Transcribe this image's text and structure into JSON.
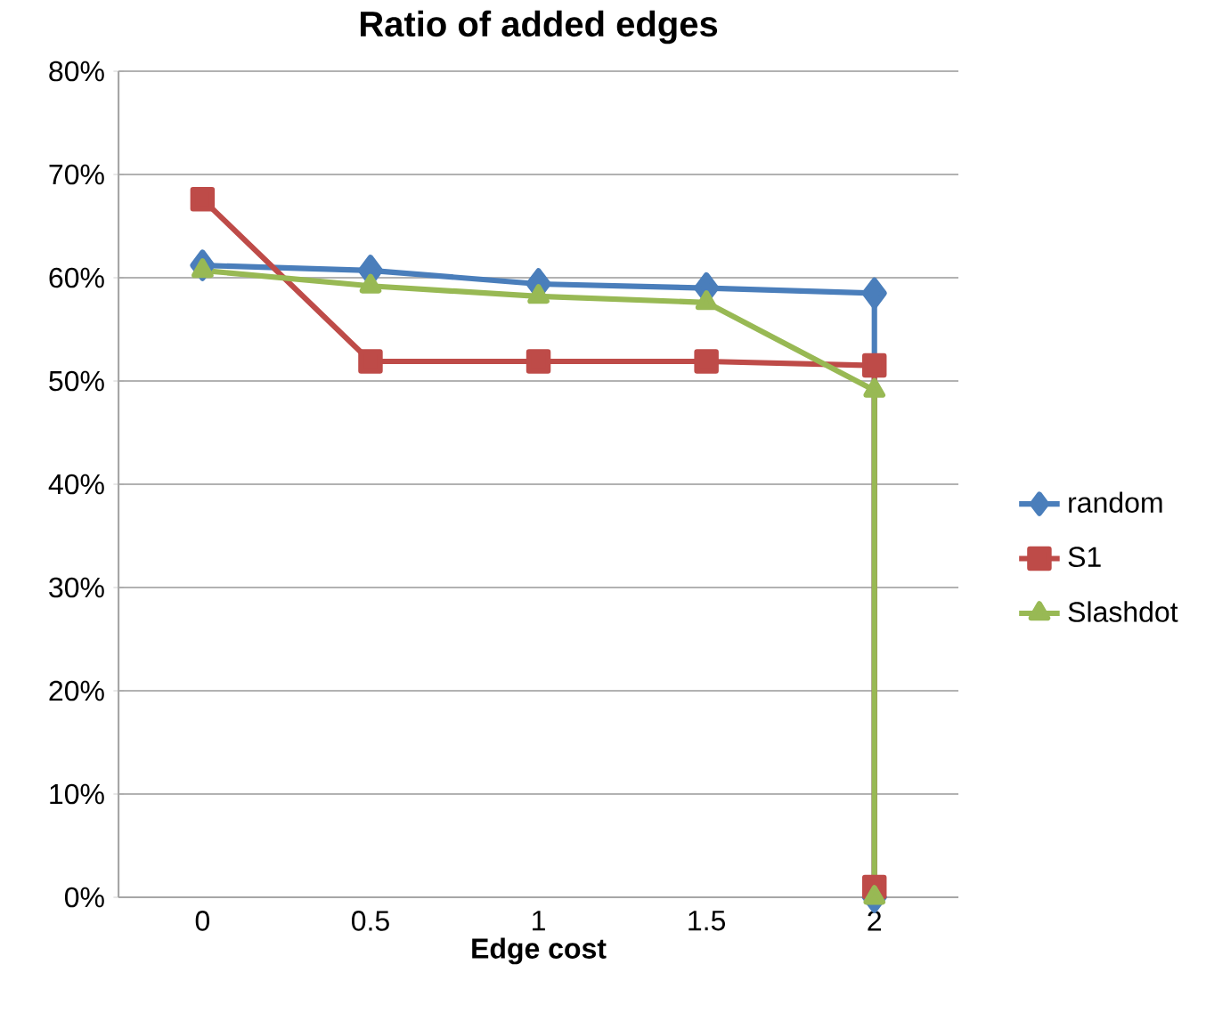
{
  "chart_data": {
    "type": "line",
    "title": "Ratio of added edges",
    "xlabel": "Edge cost",
    "xlim": [
      -0.25,
      2.25
    ],
    "xticks": [
      0,
      0.5,
      1,
      1.5,
      2
    ],
    "ylim": [
      0,
      80
    ],
    "yticks": [
      {
        "value": 0,
        "label": "0%"
      },
      {
        "value": 10,
        "label": "10%"
      },
      {
        "value": 20,
        "label": "20%"
      },
      {
        "value": 30,
        "label": "30%"
      },
      {
        "value": 40,
        "label": "40%"
      },
      {
        "value": 50,
        "label": "50%"
      },
      {
        "value": 60,
        "label": "60%"
      },
      {
        "value": 70,
        "label": "70%"
      },
      {
        "value": 80,
        "label": "80%"
      }
    ],
    "grid": "y",
    "legend": "right",
    "line_style": "solid",
    "series": [
      {
        "name": "random",
        "color": "#4a7ebb",
        "marker": "diamond",
        "x": [
          0,
          0.5,
          1,
          1.5,
          2,
          2
        ],
        "values": [
          61.2,
          60.7,
          59.4,
          59.0,
          58.5,
          0
        ]
      },
      {
        "name": "S1",
        "color": "#be4b48",
        "marker": "square",
        "x": [
          0,
          0.5,
          1,
          1.5,
          2,
          2
        ],
        "values": [
          67.6,
          51.9,
          51.9,
          51.9,
          51.5,
          1
        ]
      },
      {
        "name": "Slashdot",
        "color": "#98b954",
        "marker": "triangle",
        "x": [
          0,
          0.5,
          1,
          1.5,
          2,
          2
        ],
        "values": [
          60.7,
          59.2,
          58.2,
          57.6,
          49.1,
          0
        ]
      }
    ]
  }
}
